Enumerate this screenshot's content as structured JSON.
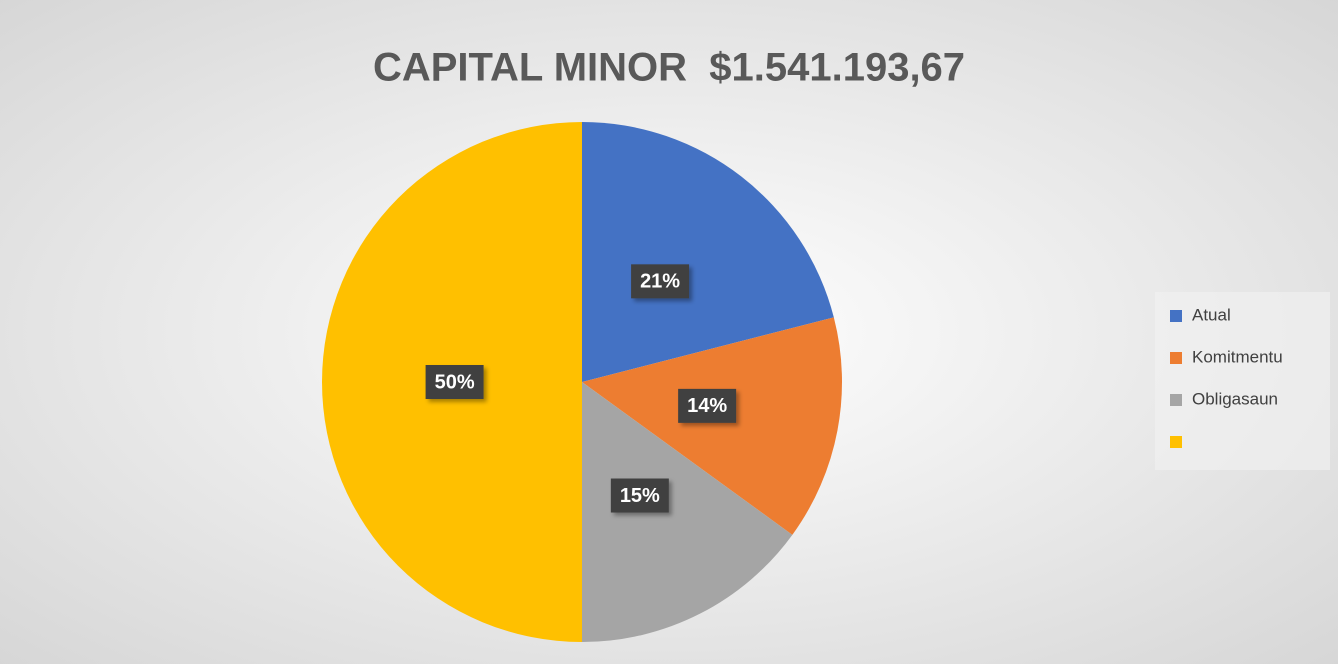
{
  "chart_data": {
    "type": "pie",
    "title": "CAPITAL MINOR  $1.541.193,67",
    "categories": [
      "Atual",
      "Komitmentu",
      "Obligasaun",
      null
    ],
    "values": [
      21,
      14,
      15,
      50
    ],
    "value_labels": [
      "21%",
      "14%",
      "15%",
      "50%"
    ],
    "colors": [
      "#4472c4",
      "#ed7d31",
      "#a5a5a5",
      "#ffc000"
    ],
    "legend": "right"
  }
}
